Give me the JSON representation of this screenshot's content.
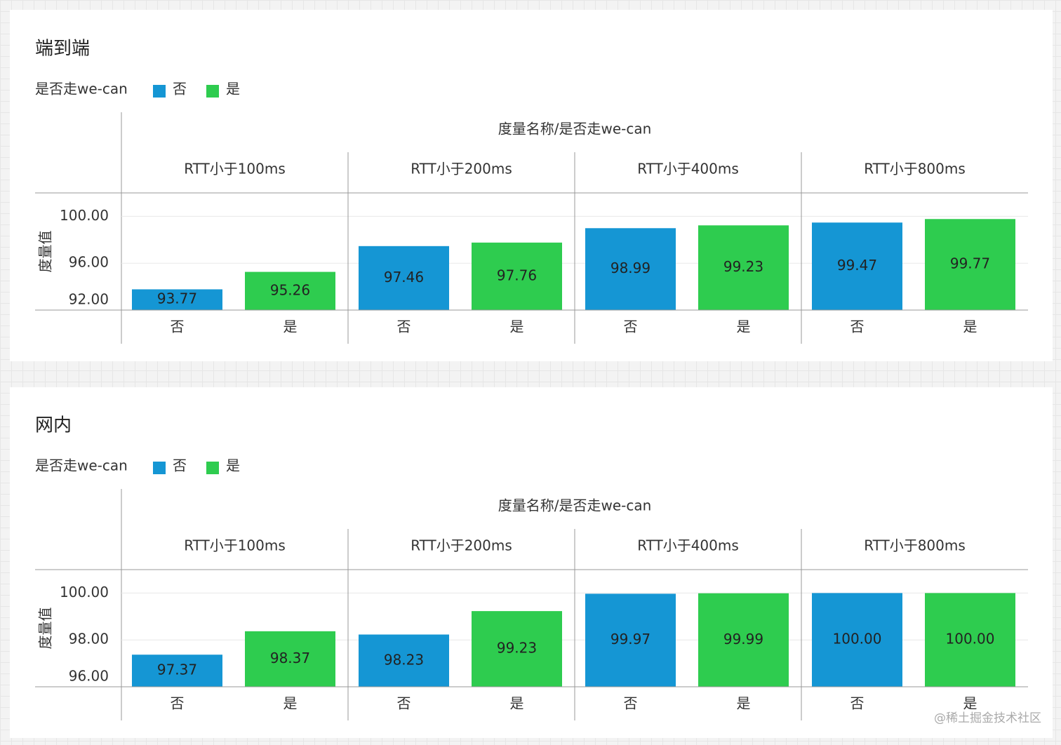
{
  "chart_data": [
    {
      "type": "bar",
      "title": "端到端",
      "legend_title": "是否走we-can",
      "header": "度量名称/是否走we-can",
      "ylabel": "度量值",
      "categories": [
        "RTT小于100ms",
        "RTT小于200ms",
        "RTT小于400ms",
        "RTT小于800ms"
      ],
      "series": [
        {
          "name": "否",
          "color": "#1596d4",
          "values": [
            93.77,
            97.46,
            98.99,
            99.47
          ],
          "value_labels": [
            "93.77",
            "97.46",
            "98.99",
            "99.47"
          ]
        },
        {
          "name": "是",
          "color": "#2ecc4f",
          "values": [
            95.26,
            97.76,
            99.23,
            99.77
          ],
          "value_labels": [
            "95.26",
            "97.76",
            "99.23",
            "99.77"
          ]
        }
      ],
      "ylim": [
        92,
        102
      ],
      "yticks": [
        {
          "value": 92,
          "label": "92.00"
        },
        {
          "value": 96,
          "label": "96.00"
        },
        {
          "value": 100,
          "label": "100.00"
        }
      ],
      "grid": true
    },
    {
      "type": "bar",
      "title": "网内",
      "legend_title": "是否走we-can",
      "header": "度量名称/是否走we-can",
      "ylabel": "度量值",
      "categories": [
        "RTT小于100ms",
        "RTT小于200ms",
        "RTT小于400ms",
        "RTT小于800ms"
      ],
      "series": [
        {
          "name": "否",
          "color": "#1596d4",
          "values": [
            97.37,
            98.23,
            99.97,
            100
          ],
          "value_labels": [
            "97.37",
            "98.23",
            "99.97",
            "100.00"
          ]
        },
        {
          "name": "是",
          "color": "#2ecc4f",
          "values": [
            98.37,
            99.23,
            99.99,
            100
          ],
          "value_labels": [
            "98.37",
            "99.23",
            "99.99",
            "100.00"
          ]
        }
      ],
      "ylim": [
        96,
        101
      ],
      "yticks": [
        {
          "value": 96,
          "label": "96.00"
        },
        {
          "value": 98,
          "label": "98.00"
        },
        {
          "value": 100,
          "label": "100.00"
        }
      ],
      "grid": true
    }
  ],
  "watermark": "@稀土掘金技术社区"
}
